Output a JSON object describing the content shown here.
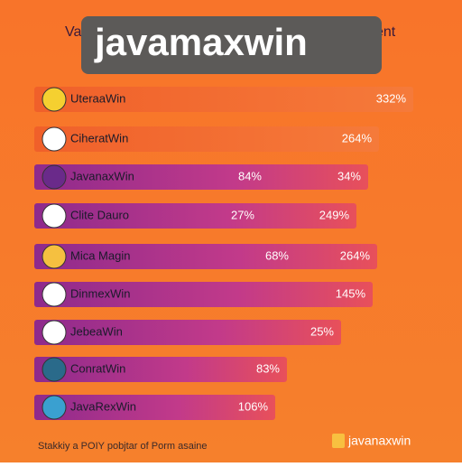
{
  "header": {
    "title": "javamaxwin",
    "behind_left": "Va",
    "behind_right": "ent"
  },
  "rows": [
    {
      "label": "UteraaWin",
      "texts": [
        "332%"
      ]
    },
    {
      "label": "CiheratWin",
      "texts": [
        "264%"
      ]
    },
    {
      "label": "JavanaxWin",
      "texts": [
        "84%",
        "34%"
      ]
    },
    {
      "label": "Clite Dauro",
      "texts": [
        "27%",
        "249%"
      ]
    },
    {
      "label": "Mica Magin",
      "texts": [
        "68%",
        "264%"
      ]
    },
    {
      "label": "DinmexWin",
      "texts": [
        "145%"
      ]
    },
    {
      "label": "JebeaWin",
      "texts": [
        "25%"
      ]
    },
    {
      "label": "ConratWin",
      "texts": [
        "83%"
      ]
    },
    {
      "label": "JavaRexWin",
      "texts": [
        "106%"
      ]
    }
  ],
  "footer": {
    "note": "Stakkiy a POIY pobjtar of Porm asaine",
    "logo": "javanaxwin"
  }
}
